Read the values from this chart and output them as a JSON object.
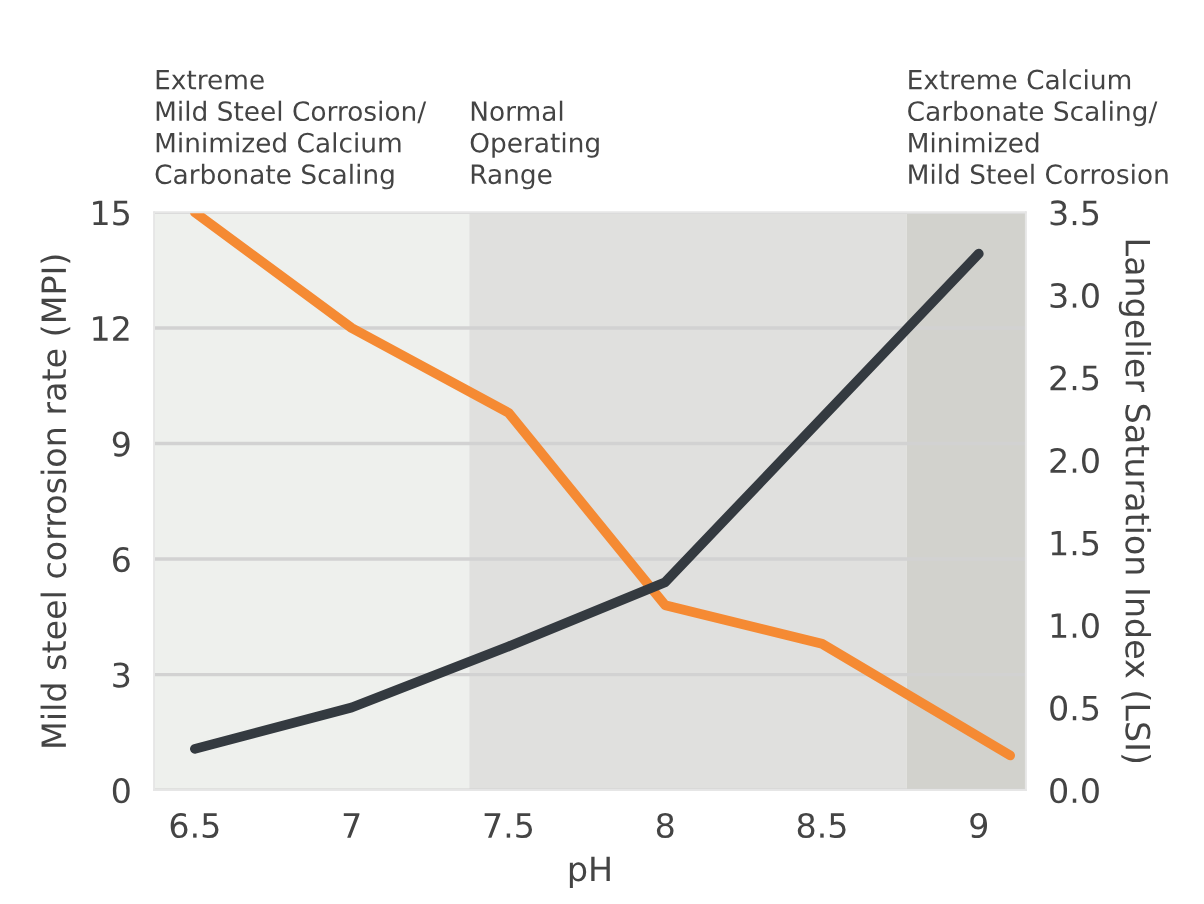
{
  "chart_data": {
    "type": "line",
    "xlabel": "pH",
    "ylabel": "Mild steel corrosion rate (MPI)",
    "y2label": "Langelier Saturation Index (LSI)",
    "series": [
      {
        "color": "#f58a33",
        "x": [
          6.5,
          7.0,
          7.5,
          8.0,
          8.5,
          9.1
        ],
        "values": [
          15,
          12,
          9.8,
          4.8,
          3.8,
          0.9
        ]
      },
      {
        "color": "#343a40",
        "axis": "y2",
        "x": [
          6.5,
          7.0,
          7.5,
          8.0,
          9.0
        ],
        "values": [
          0.25,
          0.5,
          0.87,
          1.26,
          3.25
        ]
      }
    ],
    "xlim": [
      6.37,
      9.15
    ],
    "xticks": [
      {
        "value": 6.5,
        "label": "6.5"
      },
      {
        "value": 7,
        "label": "7"
      },
      {
        "value": 7.5,
        "label": "7.5"
      },
      {
        "value": 8,
        "label": "8"
      },
      {
        "value": 8.5,
        "label": "8.5"
      },
      {
        "value": 9,
        "label": "9"
      }
    ],
    "ylim": [
      0,
      15
    ],
    "yticks": [
      0,
      3,
      6,
      9,
      12,
      15
    ],
    "y2lim": [
      0,
      3.5
    ],
    "y2ticks": [
      {
        "value": 0,
        "label": "0.0"
      },
      {
        "value": 0.5,
        "label": "0.5"
      },
      {
        "value": 1,
        "label": "1.0"
      },
      {
        "value": 1.5,
        "label": "1.5"
      },
      {
        "value": 2,
        "label": "2.0"
      },
      {
        "value": 2.5,
        "label": "2.5"
      },
      {
        "value": 3,
        "label": "3.0"
      },
      {
        "value": 3.5,
        "label": "3.5"
      }
    ],
    "bands": [
      {
        "axis": "x",
        "from": 6.37,
        "to": 7.375,
        "color": "#eef0ed",
        "label": "Extreme\nMild Steel Corrosion/\nMinimized Calcium\nCarbonate Scaling"
      },
      {
        "axis": "x",
        "from": 7.375,
        "to": 8.77,
        "color": "#e0e0de",
        "label": "Normal\nOperating\nRange"
      },
      {
        "axis": "x",
        "from": 8.77,
        "to": 9.15,
        "color": "#d2d2cd",
        "label": "Extreme Calcium\nCarbonate Scaling/\nMinimized\nMild Steel Corrosion"
      }
    ],
    "grid": "y",
    "marker": "none",
    "line_style": "solid"
  }
}
